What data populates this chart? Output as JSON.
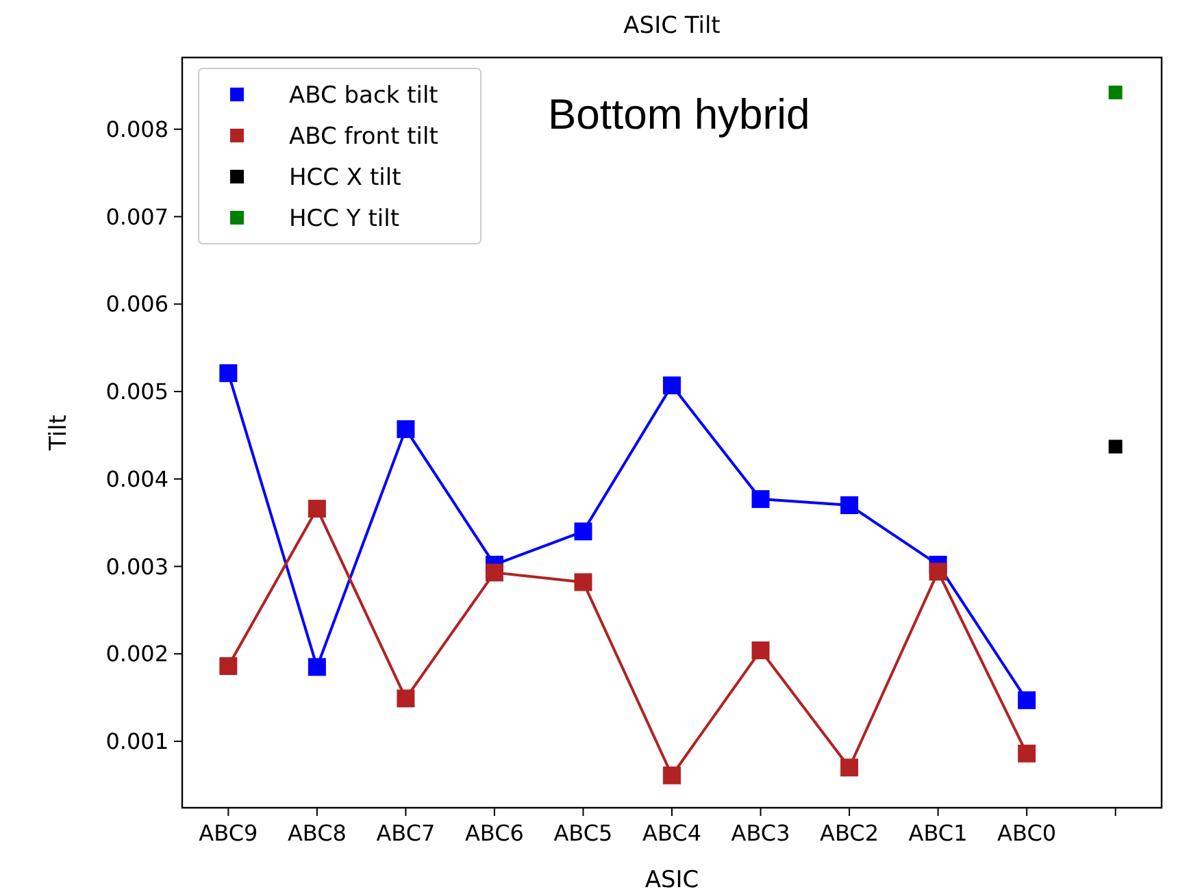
{
  "chart_data": {
    "type": "line",
    "title": "ASIC Tilt",
    "xlabel": "ASIC",
    "ylabel": "Tilt",
    "categories": [
      "ABC9",
      "ABC8",
      "ABC7",
      "ABC6",
      "ABC5",
      "ABC4",
      "ABC3",
      "ABC2",
      "ABC1",
      "ABC0",
      null
    ],
    "series": [
      {
        "name": "ABC back tilt",
        "color": "#0000ff",
        "values": [
          0.00521,
          0.00185,
          0.00457,
          0.00302,
          0.0034,
          0.00507,
          0.00377,
          0.0037,
          0.00302,
          0.00147,
          null
        ]
      },
      {
        "name": "ABC front tilt",
        "color": "#b22222",
        "values": [
          0.00186,
          0.00366,
          0.00149,
          0.00293,
          0.00282,
          0.00061,
          0.00204,
          0.0007,
          0.00294,
          0.00086,
          null
        ]
      },
      {
        "name": "HCC X tilt",
        "color": "#000000",
        "type": "scatter",
        "values": [
          null,
          null,
          null,
          null,
          null,
          null,
          null,
          null,
          null,
          null,
          0.00437
        ]
      },
      {
        "name": "HCC Y tilt",
        "color": "#008000",
        "type": "scatter",
        "values": [
          null,
          null,
          null,
          null,
          null,
          null,
          null,
          null,
          null,
          null,
          0.00842
        ]
      }
    ],
    "ylim": [
      0.00024,
      0.00882
    ],
    "yticks": [
      0.001,
      0.002,
      0.003,
      0.004,
      0.005,
      0.006,
      0.007,
      0.008
    ],
    "annotations": [
      "Bottom hybrid"
    ],
    "legend": "top left",
    "marker": "square",
    "line_style": "solid",
    "grid": false
  }
}
